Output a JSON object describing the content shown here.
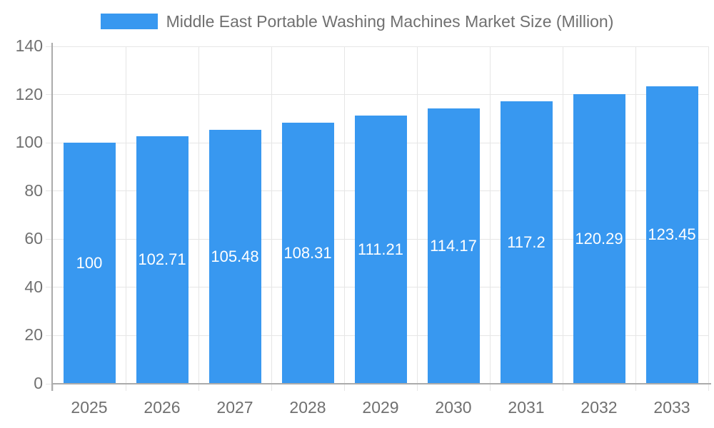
{
  "chart_data": {
    "type": "bar",
    "title": "Middle East Portable Washing Machines Market Size (Million)",
    "legend": {
      "label": "Middle East Portable Washing Machines Market Size (Million)",
      "position": "top",
      "swatch_color": "#3898F0"
    },
    "categories": [
      "2025",
      "2026",
      "2027",
      "2028",
      "2029",
      "2030",
      "2031",
      "2032",
      "2033"
    ],
    "values": [
      100,
      102.71,
      105.48,
      108.31,
      111.21,
      114.17,
      117.2,
      120.29,
      123.45
    ],
    "bar_labels": [
      "100",
      "102.71",
      "105.48",
      "108.31",
      "111.21",
      "114.17",
      "117.2",
      "120.29",
      "123.45"
    ],
    "xlabel": "",
    "ylabel": "",
    "ylim": [
      0,
      140
    ],
    "yticks": [
      0,
      20,
      40,
      60,
      80,
      100,
      120,
      140
    ],
    "grid": true,
    "colors": {
      "bar": "#3898F0",
      "bar_label_text": "#FFFFFF",
      "axis_text": "#707070",
      "grid_line": "#E6E6E6",
      "axis_line": "#ABABAB",
      "background": "#FFFFFF"
    }
  }
}
